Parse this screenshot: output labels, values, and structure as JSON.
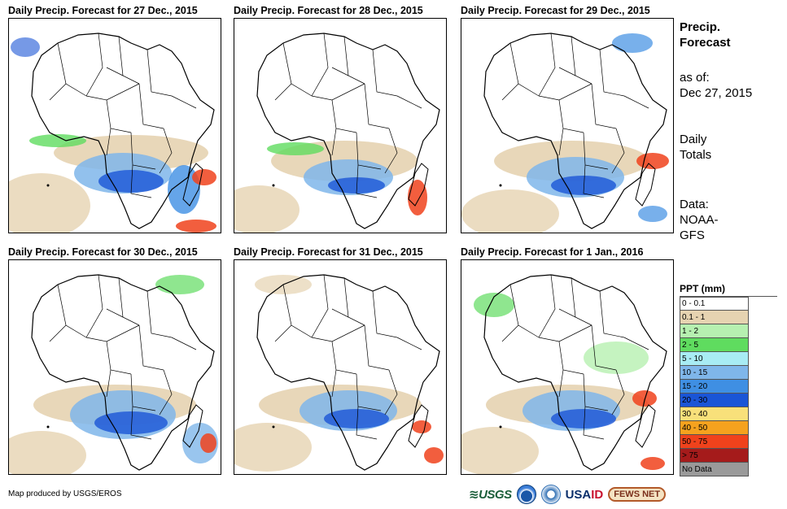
{
  "panels": [
    {
      "title": "Daily Precip. Forecast for 27 Dec., 2015"
    },
    {
      "title": "Daily Precip. Forecast for 28 Dec., 2015"
    },
    {
      "title": "Daily Precip. Forecast for 29 Dec., 2015"
    },
    {
      "title": "Daily Precip. Forecast for 30 Dec., 2015"
    },
    {
      "title": "Daily Precip. Forecast for 31 Dec., 2015"
    },
    {
      "title": "Daily Precip. Forecast for 1 Jan., 2016"
    }
  ],
  "sidebar": {
    "title_line1": "Precip.",
    "title_line2": "Forecast",
    "asof_label": "as of:",
    "asof_date": "Dec 27, 2015",
    "totals_line1": "Daily",
    "totals_line2": "Totals",
    "data_line1": "Data:",
    "data_line2": "NOAA-",
    "data_line3": "GFS"
  },
  "legend": {
    "title": "PPT (mm)",
    "items": [
      {
        "label": "0 - 0.1",
        "color": "#ffffff"
      },
      {
        "label": "0.1 - 1",
        "color": "#e6d3b1"
      },
      {
        "label": "1 - 2",
        "color": "#b6f0b0"
      },
      {
        "label": "2 - 5",
        "color": "#5fdc5f"
      },
      {
        "label": "5 - 10",
        "color": "#a8ecf4"
      },
      {
        "label": "10 - 15",
        "color": "#7fb6ea"
      },
      {
        "label": "15 - 20",
        "color": "#3f8fe3"
      },
      {
        "label": "20 - 30",
        "color": "#1a55d6"
      },
      {
        "label": "30 - 40",
        "color": "#f8e07a"
      },
      {
        "label": "40 - 50",
        "color": "#f5a21e"
      },
      {
        "label": "50 - 75",
        "color": "#f0421c"
      },
      {
        "label": "> 75",
        "color": "#a51b1b"
      },
      {
        "label": "No Data",
        "color": "#9a9a9a"
      }
    ]
  },
  "footer": {
    "credit": "Map produced by USGS/EROS",
    "logo_usgs": "≋USGS",
    "logo_usaid_1": "USA",
    "logo_usaid_2": "ID",
    "logo_fews": "FEWS NET"
  }
}
